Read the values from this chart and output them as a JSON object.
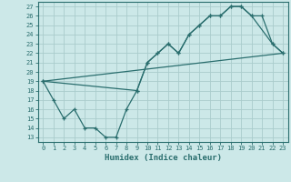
{
  "title": "",
  "xlabel": "Humidex (Indice chaleur)",
  "bg_color": "#cce8e8",
  "grid_color": "#aacccc",
  "line_color": "#2a6e6e",
  "xlim": [
    -0.5,
    23.5
  ],
  "ylim": [
    12.5,
    27.5
  ],
  "xticks": [
    0,
    1,
    2,
    3,
    4,
    5,
    6,
    7,
    8,
    9,
    10,
    11,
    12,
    13,
    14,
    15,
    16,
    17,
    18,
    19,
    20,
    21,
    22,
    23
  ],
  "yticks": [
    13,
    14,
    15,
    16,
    17,
    18,
    19,
    20,
    21,
    22,
    23,
    24,
    25,
    26,
    27
  ],
  "line1_x": [
    0,
    1,
    2,
    3,
    4,
    5,
    6,
    7,
    8,
    9,
    10,
    11,
    12,
    13,
    14,
    15,
    16,
    17,
    18,
    19,
    20,
    21,
    22,
    23
  ],
  "line1_y": [
    19,
    17,
    15,
    16,
    14,
    14,
    13,
    13,
    16,
    18,
    21,
    22,
    23,
    22,
    24,
    25,
    26,
    26,
    27,
    27,
    26,
    26,
    23,
    22
  ],
  "line2_x": [
    0,
    9,
    10,
    11,
    12,
    13,
    14,
    15,
    16,
    17,
    18,
    19,
    20,
    22,
    23
  ],
  "line2_y": [
    19,
    18,
    21,
    22,
    23,
    22,
    24,
    25,
    26,
    26,
    27,
    27,
    26,
    23,
    22
  ],
  "line3_x": [
    0,
    23
  ],
  "line3_y": [
    19,
    22
  ],
  "tick_fontsize": 5.0,
  "xlabel_fontsize": 6.5
}
